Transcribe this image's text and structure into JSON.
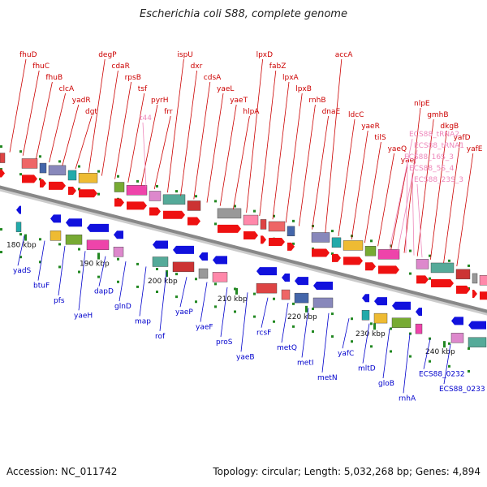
{
  "title": "Escherichia coli S88, complete genome",
  "footer": {
    "accession": "Accession: NC_011742",
    "summary": "Topology: circular; Length: 5,032,268 bp; Genes: 4,894"
  },
  "colors": {
    "forward_label": "#cc0000",
    "reverse_label": "#0000cc",
    "rna_label": "#ee88bb",
    "backbone": "#888888",
    "tick": "#228822"
  },
  "scale_labels": [
    "180 kbp",
    "190 kbp",
    "200 kbp",
    "210 kbp",
    "220 kbp",
    "230 kbp",
    "240 kbp"
  ],
  "forward_genes": [
    "fhuD",
    "fhuC",
    "fhuB",
    "clcA",
    "yadR",
    "dgt",
    "degP",
    "cdaR",
    "rpsB",
    "tsf",
    "pyrH",
    "frr",
    "ispU",
    "dxr",
    "cdsA",
    "yaeL",
    "yaeT",
    "hlpA",
    "lpxD",
    "fabZ",
    "lpxA",
    "lpxB",
    "rnhB",
    "dnaE",
    "accA",
    "ldcC",
    "yaeR",
    "tilS",
    "yaeQ",
    "yaeJ",
    "nlpE",
    "gmhB",
    "dkgB",
    "yafD",
    "yafE"
  ],
  "rna_genes": [
    "t44",
    "ECS88_tRNA2",
    "ECS88_tRNA1",
    "ECS88_16S_3",
    "ECS88_5S_4",
    "ECS88_23S_3"
  ],
  "reverse_genes": [
    "yadS",
    "btuF",
    "pfs",
    "yaeH",
    "dapD",
    "glnD",
    "map",
    "rof",
    "yaeP",
    "yaeF",
    "proS",
    "yaeB",
    "rcsF",
    "metQ",
    "metI",
    "metN",
    "yafC",
    "mltD",
    "gloB",
    "rnhA",
    "ECS88_0232",
    "ECS88_0233"
  ]
}
